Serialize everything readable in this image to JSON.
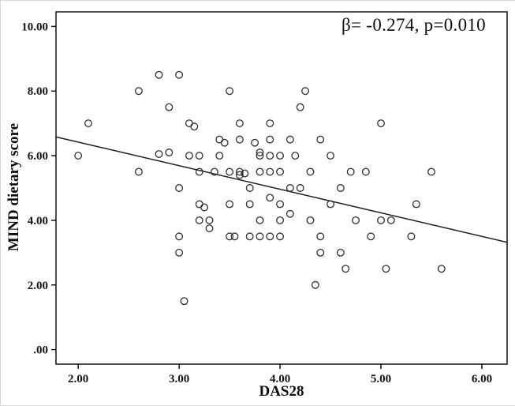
{
  "chart_data": {
    "type": "scatter",
    "title": "",
    "xlabel": "DAS28",
    "ylabel": "MIND dietary score",
    "annotation": "β= -0.274, p=0.010",
    "xlim": [
      1.78,
      6.25
    ],
    "ylim": [
      -0.45,
      10.45
    ],
    "grid": false,
    "legend": "none",
    "x_ticks": [
      {
        "value": 2,
        "label": "2.00"
      },
      {
        "value": 3,
        "label": "3.00"
      },
      {
        "value": 4,
        "label": "4.00"
      },
      {
        "value": 5,
        "label": "5.00"
      },
      {
        "value": 6,
        "label": "6.00"
      }
    ],
    "y_ticks": [
      {
        "value": 0,
        "label": ".00"
      },
      {
        "value": 2,
        "label": "2.00"
      },
      {
        "value": 4,
        "label": "4.00"
      },
      {
        "value": 6,
        "label": "6.00"
      },
      {
        "value": 8,
        "label": "8.00"
      },
      {
        "value": 10,
        "label": "10.00"
      }
    ],
    "regression_line": {
      "x": [
        1.78,
        6.25
      ],
      "y": [
        6.58,
        3.32
      ]
    },
    "marker": {
      "shape": "open-circle",
      "stroke": "#2e2e2e",
      "radius": 4.3
    },
    "colors": {
      "line": "#1c1c1c",
      "axis": "#000000",
      "background": "#ffffff"
    },
    "points": [
      [
        2.0,
        6.0
      ],
      [
        2.1,
        7.0
      ],
      [
        2.6,
        8.0
      ],
      [
        2.6,
        5.5
      ],
      [
        2.8,
        8.5
      ],
      [
        2.8,
        6.05
      ],
      [
        2.9,
        6.1
      ],
      [
        2.9,
        7.5
      ],
      [
        3.0,
        8.5
      ],
      [
        3.0,
        5.0
      ],
      [
        3.0,
        3.5
      ],
      [
        3.0,
        3.0
      ],
      [
        3.05,
        1.5
      ],
      [
        3.1,
        7.0
      ],
      [
        3.15,
        6.9
      ],
      [
        3.1,
        6.0
      ],
      [
        3.2,
        6.0
      ],
      [
        3.2,
        5.5
      ],
      [
        3.2,
        4.5
      ],
      [
        3.25,
        4.4
      ],
      [
        3.2,
        4.0
      ],
      [
        3.3,
        4.0
      ],
      [
        3.3,
        3.75
      ],
      [
        3.35,
        5.5
      ],
      [
        3.4,
        6.5
      ],
      [
        3.45,
        6.4
      ],
      [
        3.4,
        6.0
      ],
      [
        3.5,
        8.0
      ],
      [
        3.5,
        5.5
      ],
      [
        3.5,
        4.5
      ],
      [
        3.5,
        3.5
      ],
      [
        3.55,
        3.5
      ],
      [
        3.6,
        6.5
      ],
      [
        3.6,
        7.0
      ],
      [
        3.6,
        5.5
      ],
      [
        3.6,
        5.4
      ],
      [
        3.65,
        5.45
      ],
      [
        3.7,
        5.0
      ],
      [
        3.7,
        4.5
      ],
      [
        3.7,
        3.5
      ],
      [
        3.75,
        6.4
      ],
      [
        3.8,
        6.1
      ],
      [
        3.8,
        6.0
      ],
      [
        3.8,
        5.5
      ],
      [
        3.8,
        4.0
      ],
      [
        3.8,
        3.5
      ],
      [
        3.9,
        7.0
      ],
      [
        3.9,
        6.5
      ],
      [
        3.9,
        6.0
      ],
      [
        3.9,
        5.5
      ],
      [
        3.9,
        4.7
      ],
      [
        3.9,
        3.5
      ],
      [
        4.0,
        6.0
      ],
      [
        4.0,
        5.5
      ],
      [
        4.0,
        4.5
      ],
      [
        4.0,
        4.0
      ],
      [
        4.0,
        3.5
      ],
      [
        4.1,
        6.5
      ],
      [
        4.1,
        5.0
      ],
      [
        4.1,
        4.2
      ],
      [
        4.15,
        6.0
      ],
      [
        4.2,
        7.5
      ],
      [
        4.2,
        5.0
      ],
      [
        4.25,
        8.0
      ],
      [
        4.3,
        5.5
      ],
      [
        4.3,
        4.0
      ],
      [
        4.35,
        2.0
      ],
      [
        4.4,
        6.5
      ],
      [
        4.4,
        3.5
      ],
      [
        4.4,
        3.0
      ],
      [
        4.5,
        6.0
      ],
      [
        4.5,
        4.5
      ],
      [
        4.6,
        5.0
      ],
      [
        4.6,
        3.0
      ],
      [
        4.65,
        2.5
      ],
      [
        4.7,
        5.5
      ],
      [
        4.75,
        4.0
      ],
      [
        4.85,
        5.5
      ],
      [
        4.9,
        3.5
      ],
      [
        5.0,
        7.0
      ],
      [
        5.0,
        4.0
      ],
      [
        5.05,
        2.5
      ],
      [
        5.1,
        4.0
      ],
      [
        5.3,
        3.5
      ],
      [
        5.35,
        4.5
      ],
      [
        5.5,
        5.5
      ],
      [
        5.6,
        2.5
      ]
    ]
  }
}
